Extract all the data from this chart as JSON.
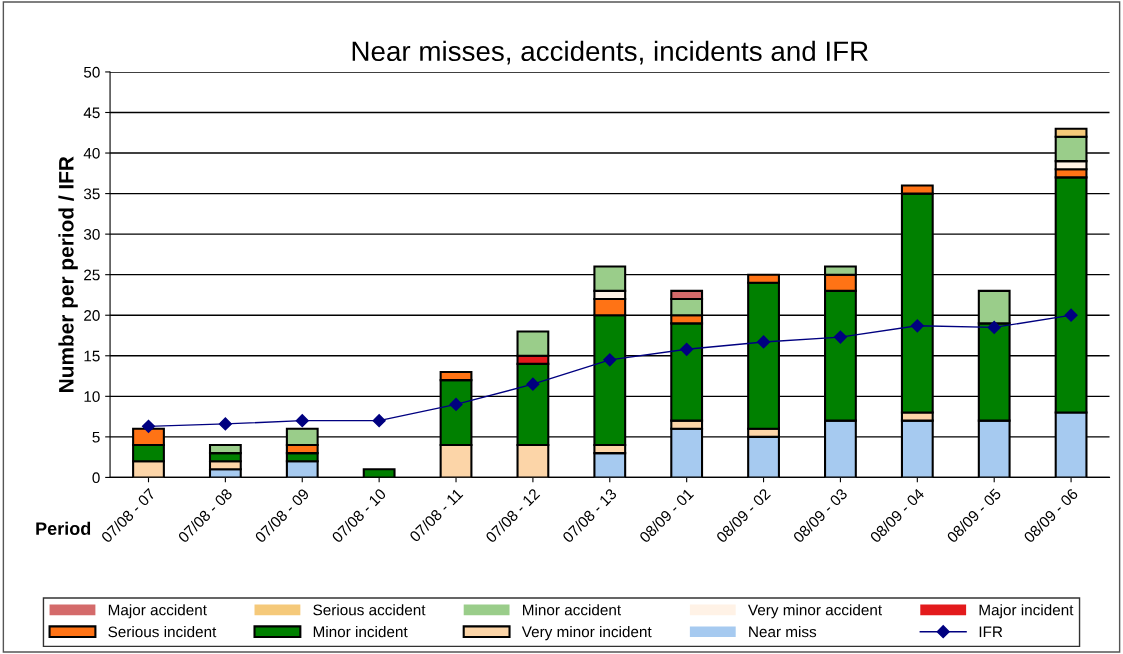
{
  "chart_data": {
    "type": "bar",
    "stacked": true,
    "title": "Near misses, accidents, incidents and IFR",
    "xlabel": "Period",
    "ylabel": "Number per period / IFR",
    "categories": [
      "07/08 - 07",
      "07/08 - 08",
      "07/08 - 09",
      "07/08 - 10",
      "07/08 - 11",
      "07/08 - 12",
      "07/08 - 13",
      "08/09 - 01",
      "08/09 - 02",
      "08/09 - 03",
      "08/09 - 04",
      "08/09 - 05",
      "08/09 - 06"
    ],
    "ylim": [
      0,
      50
    ],
    "yticks": [
      0,
      5,
      10,
      15,
      20,
      25,
      30,
      35,
      40,
      45,
      50
    ],
    "grid": "y",
    "legend": "bottom",
    "series": [
      {
        "name": "Near miss",
        "color": "#a6caf0",
        "values": [
          0,
          1,
          2,
          0,
          0,
          0,
          3,
          6,
          5,
          7,
          7,
          7,
          8
        ]
      },
      {
        "name": "Very minor incident",
        "color": "#fcd5a8",
        "values": [
          2,
          1,
          0,
          0,
          4,
          4,
          1,
          1,
          1,
          0,
          1,
          0,
          0
        ]
      },
      {
        "name": "Minor incident",
        "color": "#008000",
        "values": [
          2,
          1,
          1,
          1,
          8,
          10,
          16,
          12,
          18,
          16,
          27,
          12,
          29
        ]
      },
      {
        "name": "Serious incident",
        "color": "#ff7315",
        "values": [
          2,
          0,
          1,
          0,
          1,
          0,
          2,
          1,
          1,
          2,
          1,
          0,
          1
        ]
      },
      {
        "name": "Major incident",
        "color": "#e31a1c",
        "values": [
          0,
          0,
          0,
          0,
          0,
          1,
          0,
          0,
          0,
          0,
          0,
          0,
          0
        ]
      },
      {
        "name": "Very minor accident",
        "color": "#fff2e6",
        "values": [
          0,
          0,
          0,
          0,
          0,
          0,
          1,
          0,
          0,
          0,
          0,
          0,
          1
        ]
      },
      {
        "name": "Minor accident",
        "color": "#9acd8a",
        "values": [
          0,
          1,
          2,
          0,
          0,
          3,
          3,
          2,
          0,
          1,
          0,
          4,
          3
        ]
      },
      {
        "name": "Serious accident",
        "color": "#f5c97a",
        "values": [
          0,
          0,
          0,
          0,
          0,
          0,
          0,
          0,
          0,
          0,
          0,
          0,
          1
        ]
      },
      {
        "name": "Major accident",
        "color": "#d46a6a",
        "values": [
          0,
          0,
          0,
          0,
          0,
          0,
          0,
          1,
          0,
          0,
          0,
          0,
          0
        ]
      },
      {
        "name": "IFR",
        "type": "line",
        "color": "#000080",
        "marker": "diamond",
        "values": [
          6.3,
          6.6,
          7.0,
          7.0,
          9.0,
          11.5,
          14.5,
          15.8,
          16.7,
          17.3,
          18.7,
          18.5,
          20.0
        ]
      }
    ]
  }
}
